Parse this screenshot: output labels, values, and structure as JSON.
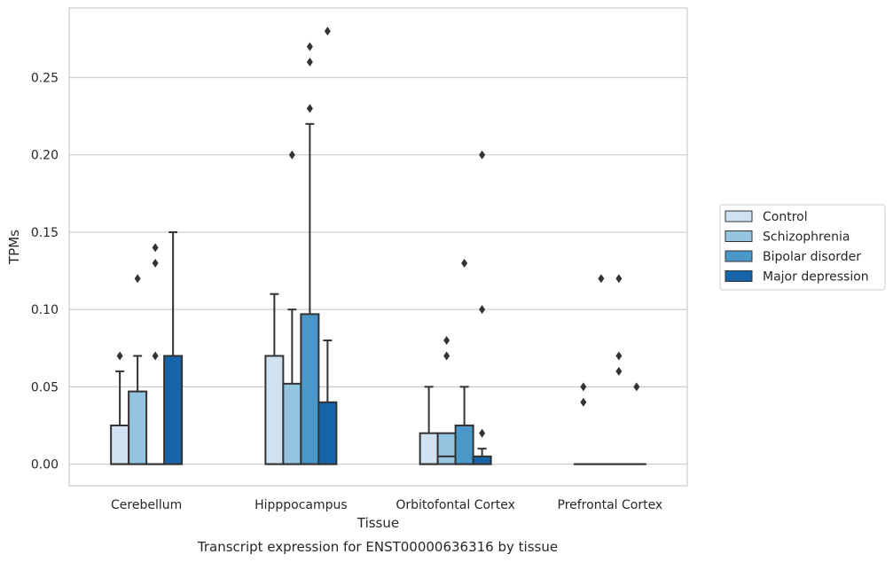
{
  "chart_data": {
    "type": "box",
    "title": "",
    "caption": "Transcript expression for ENST00000636316 by tissue",
    "xlabel": "Tissue",
    "ylabel": "TPMs",
    "ylim": [
      -0.014,
      0.295
    ],
    "yticks": [
      0.0,
      0.05,
      0.1,
      0.15,
      0.2,
      0.25
    ],
    "ytick_labels": [
      "0.00",
      "0.05",
      "0.10",
      "0.15",
      "0.20",
      "0.25"
    ],
    "grid": "horizontal",
    "legend_position": "right",
    "categories": [
      "Cerebellum",
      "Hipppocampus",
      "Orbitofontal Cortex",
      "Prefrontal Cortex"
    ],
    "series": [
      {
        "name": "Control",
        "color": "#d0e1f2",
        "boxes": [
          {
            "q1": 0.0,
            "median": 0.0,
            "q3": 0.025,
            "whisker_low": 0.0,
            "whisker_high": 0.06,
            "outliers": [
              0.07
            ]
          },
          {
            "q1": 0.0,
            "median": 0.0,
            "q3": 0.07,
            "whisker_low": 0.0,
            "whisker_high": 0.11,
            "outliers": []
          },
          {
            "q1": 0.0,
            "median": 0.0,
            "q3": 0.02,
            "whisker_low": 0.0,
            "whisker_high": 0.05,
            "outliers": []
          },
          {
            "q1": 0.0,
            "median": 0.0,
            "q3": 0.0,
            "whisker_low": 0.0,
            "whisker_high": 0.0,
            "outliers": [
              0.04,
              0.05
            ]
          }
        ]
      },
      {
        "name": "Schizophrenia",
        "color": "#94c4df",
        "boxes": [
          {
            "q1": 0.0,
            "median": 0.0,
            "q3": 0.047,
            "whisker_low": 0.0,
            "whisker_high": 0.07,
            "outliers": [
              0.12
            ]
          },
          {
            "q1": 0.0,
            "median": 0.0,
            "q3": 0.052,
            "whisker_low": 0.0,
            "whisker_high": 0.1,
            "outliers": [
              0.2
            ]
          },
          {
            "q1": 0.0,
            "median": 0.005,
            "q3": 0.02,
            "whisker_low": 0.0,
            "whisker_high": 0.02,
            "outliers": [
              0.07,
              0.08
            ]
          },
          {
            "q1": 0.0,
            "median": 0.0,
            "q3": 0.0,
            "whisker_low": 0.0,
            "whisker_high": 0.0,
            "outliers": [
              0.12
            ]
          }
        ]
      },
      {
        "name": "Bipolar disorder",
        "color": "#4a98c9",
        "boxes": [
          {
            "q1": 0.0,
            "median": 0.0,
            "q3": 0.0,
            "whisker_low": 0.0,
            "whisker_high": 0.0,
            "outliers": [
              0.07,
              0.13,
              0.14
            ]
          },
          {
            "q1": 0.0,
            "median": 0.0,
            "q3": 0.097,
            "whisker_low": 0.0,
            "whisker_high": 0.22,
            "outliers": [
              0.23,
              0.26,
              0.27
            ]
          },
          {
            "q1": 0.0,
            "median": 0.0,
            "q3": 0.025,
            "whisker_low": 0.0,
            "whisker_high": 0.05,
            "outliers": [
              0.13
            ]
          },
          {
            "q1": 0.0,
            "median": 0.0,
            "q3": 0.0,
            "whisker_low": 0.0,
            "whisker_high": 0.0,
            "outliers": [
              0.06,
              0.07,
              0.12
            ]
          }
        ]
      },
      {
        "name": "Major depression",
        "color": "#1764ab",
        "boxes": [
          {
            "q1": 0.0,
            "median": 0.0,
            "q3": 0.07,
            "whisker_low": 0.0,
            "whisker_high": 0.15,
            "outliers": []
          },
          {
            "q1": 0.0,
            "median": 0.0,
            "q3": 0.04,
            "whisker_low": 0.0,
            "whisker_high": 0.08,
            "outliers": [
              0.28
            ]
          },
          {
            "q1": 0.0,
            "median": 0.0,
            "q3": 0.005,
            "whisker_low": 0.0,
            "whisker_high": 0.01,
            "outliers": [
              0.02,
              0.1,
              0.2
            ]
          },
          {
            "q1": 0.0,
            "median": 0.0,
            "q3": 0.0,
            "whisker_low": 0.0,
            "whisker_high": 0.0,
            "outliers": [
              0.05
            ]
          }
        ]
      }
    ]
  }
}
